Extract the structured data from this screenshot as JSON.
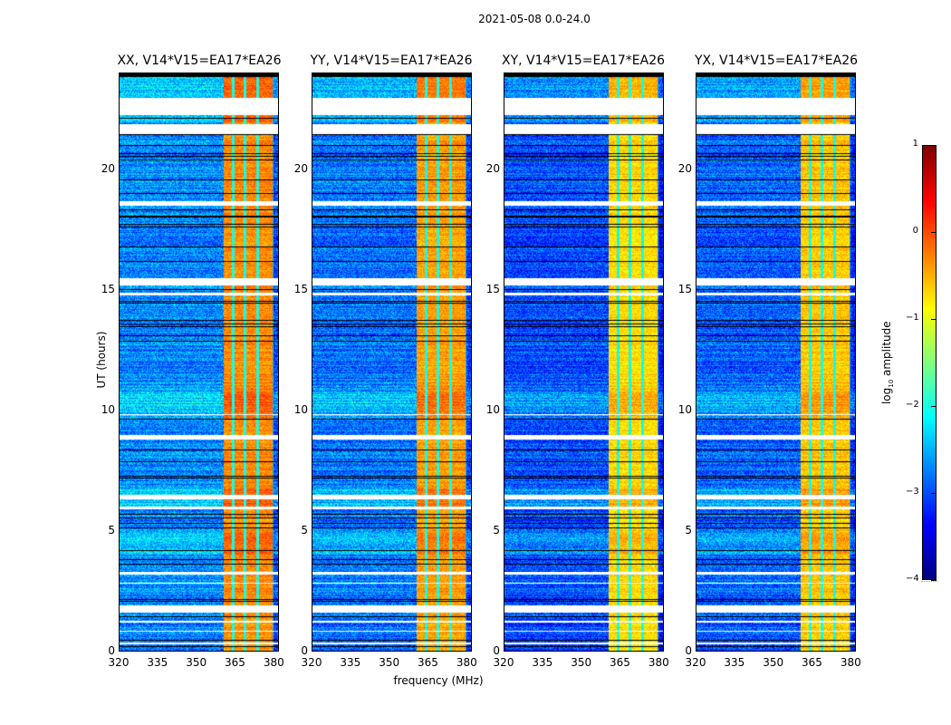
{
  "suptitle": "2021-05-08 0.0-24.0",
  "chart_data": {
    "type": "heatmap",
    "title": "2021-05-08 0.0-24.0",
    "xlabel": "frequency (MHz)",
    "ylabel": "UT (hours)",
    "xlim": [
      320,
      382
    ],
    "ylim": [
      0,
      24
    ],
    "xticks": [
      320,
      335,
      350,
      365,
      380
    ],
    "yticks": [
      0,
      5,
      10,
      15,
      20
    ],
    "colormap": "jet",
    "colorbar": {
      "label": "log10 amplitude",
      "label_main": "log",
      "label_sub": "10",
      "label_rest": " amplitude",
      "range": [
        -4,
        1
      ],
      "ticks": [
        "1",
        "0",
        "−1",
        "−2",
        "−3",
        "−4"
      ],
      "tick_values": [
        1,
        0,
        -1,
        -2,
        -3,
        -4
      ]
    },
    "bright_band_mhz": [
      360.5,
      380
    ],
    "band_notches_mhz": [
      364.2,
      369,
      373.8
    ],
    "flagged_white_ut": [
      [
        22.3,
        23.0
      ],
      [
        21.5,
        21.9
      ],
      [
        18.5,
        18.7
      ],
      [
        15.2,
        15.5
      ],
      [
        8.8,
        9.0
      ],
      [
        6.3,
        6.5
      ],
      [
        1.6,
        1.9
      ],
      [
        14.8,
        14.9
      ],
      [
        9.8,
        9.85
      ],
      [
        5.9,
        6.0
      ],
      [
        3.2,
        3.3
      ],
      [
        2.8,
        2.85
      ],
      [
        1.2,
        1.25
      ],
      [
        0.8,
        0.85
      ],
      [
        0.3,
        0.35
      ]
    ],
    "panels": [
      {
        "name": "XX",
        "title": "XX, V14*V15=EA17*EA26",
        "band_level": -0.3,
        "bg_level": -2.7
      },
      {
        "name": "YY",
        "title": "YY, V14*V15=EA17*EA26",
        "band_level": -0.4,
        "bg_level": -2.8
      },
      {
        "name": "XY",
        "title": "XY, V14*V15=EA17*EA26",
        "band_level": -0.7,
        "bg_level": -3.0
      },
      {
        "name": "YX",
        "title": "YX, V14*V15=EA17*EA26",
        "band_level": -0.6,
        "bg_level": -2.9
      }
    ]
  }
}
